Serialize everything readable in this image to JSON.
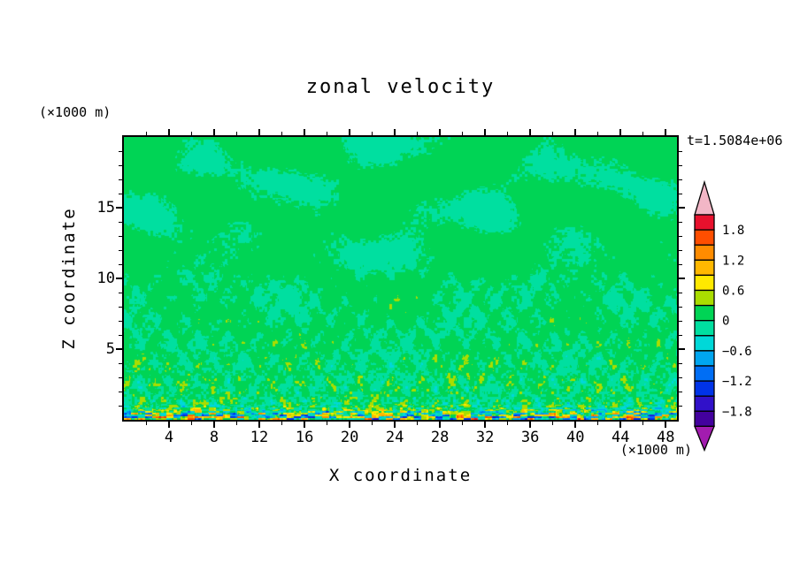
{
  "chart_data": {
    "type": "heatmap",
    "title": "zonal velocity",
    "time_label": "t=1.5084e+06",
    "xlabel": "X coordinate",
    "ylabel": "Z coordinate",
    "x_units": "(×1000 m)",
    "z_units": "(×1000 m)",
    "x_range": [
      0,
      49
    ],
    "z_range": [
      0,
      20
    ],
    "x_ticks": [
      4,
      8,
      12,
      16,
      20,
      24,
      28,
      32,
      36,
      40,
      44,
      48
    ],
    "x_minor_step": 2,
    "z_ticks": [
      5,
      10,
      15
    ],
    "z_minor_step": 1,
    "grid": false,
    "legend_position": "right-colorbar",
    "colorbar": {
      "band_width": 0.3,
      "value_max": 2.1,
      "value_min": -2.1,
      "over_color": "#f2b6c6",
      "under_color": "#a21caf",
      "band_colors_top_to_bottom": [
        "#e8112d",
        "#ff4e00",
        "#ff8c00",
        "#ffb800",
        "#ffe900",
        "#aadd00",
        "#00d455",
        "#00dfa0",
        "#00d8d8",
        "#00a6f0",
        "#006ef5",
        "#0033e8",
        "#3111c9",
        "#43019e"
      ],
      "labels": [
        {
          "text": "1.8",
          "boundary_index": 1
        },
        {
          "text": "1.2",
          "boundary_index": 3
        },
        {
          "text": "0.6",
          "boundary_index": 5
        },
        {
          "text": "0",
          "boundary_index": 7
        },
        {
          "text": "−0.6",
          "boundary_index": 9
        },
        {
          "text": "−1.2",
          "boundary_index": 11
        },
        {
          "text": "−1.8",
          "boundary_index": 13
        }
      ]
    },
    "field_description": "Simulated zonal velocity contour field, values mostly between -0.3 and 0.3 (two green bands) with smooth horizontal blobs aloft (z>8), fine diagonal wave crosshatch at mid-levels, increasing ±0.6 to ±1.2 speckle (yellow/orange/cyan/blue) below z≈5, and a strong noisy boundary layer band near z=0 reaching ±1.8."
  }
}
